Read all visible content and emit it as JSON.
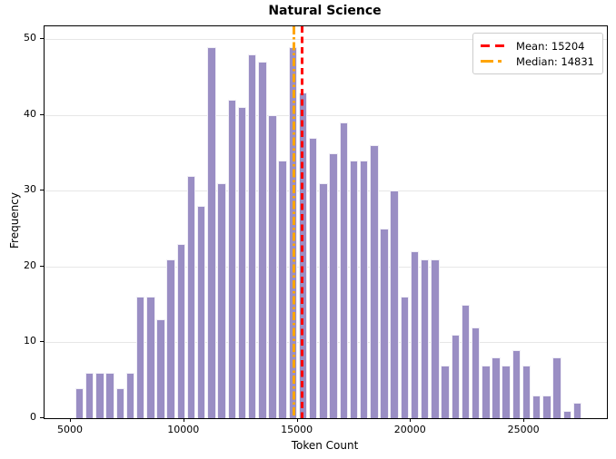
{
  "title": "Natural Science",
  "axes": {
    "xlabel": "Token Count",
    "ylabel": "Frequency"
  },
  "legend": [
    {
      "label": "Mean: 15204",
      "color": "#ff0000",
      "style": "dashed"
    },
    {
      "label": "Median: 14831",
      "color": "#ffa500",
      "style": "dashdot"
    }
  ],
  "colors": {
    "bar_fill": "#9a8ec4",
    "bar_edge": "#ffffff",
    "grid": "#e7e7e7",
    "spine": "#000000",
    "mean_line": "#ff0000",
    "median_line": "#ffa500",
    "background": "#ffffff"
  },
  "chart_data": {
    "type": "bar",
    "subtype": "histogram",
    "title": "Natural Science",
    "xlabel": "Token Count",
    "ylabel": "Frequency",
    "bin_start": 5160,
    "bin_width": 448,
    "values": [
      4,
      6,
      6,
      6,
      4,
      6,
      16,
      16,
      13,
      21,
      23,
      32,
      28,
      49,
      31,
      42,
      41,
      48,
      47,
      40,
      34,
      49,
      43,
      37,
      31,
      35,
      39,
      34,
      34,
      36,
      25,
      30,
      16,
      22,
      21,
      21,
      7,
      11,
      15,
      12,
      7,
      8,
      7,
      9,
      7,
      3,
      3,
      8,
      1,
      2
    ],
    "mean": 15204,
    "median": 14831,
    "xticks": [
      5000,
      10000,
      15000,
      20000,
      25000
    ],
    "yticks": [
      0,
      10,
      20,
      30,
      40,
      50
    ],
    "xlim": [
      3840,
      28640
    ],
    "ylim": [
      0,
      51.7
    ],
    "grid": "horizontal",
    "legend_position": "upper right"
  }
}
